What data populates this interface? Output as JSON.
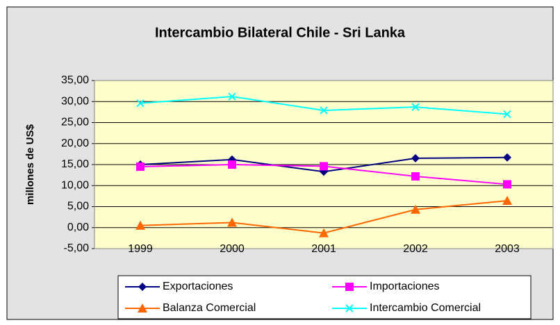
{
  "chart_data": {
    "type": "line",
    "title": "Intercambio Bilateral Chile - Sri  Lanka",
    "y_label": "millones de US$",
    "categories": [
      "1999",
      "2000",
      "2001",
      "2002",
      "2003"
    ],
    "series": [
      {
        "name": "Exportaciones",
        "color": "#000080",
        "marker": "diamond",
        "values": [
          15.0,
          16.2,
          13.3,
          16.5,
          16.7
        ]
      },
      {
        "name": "Importaciones",
        "color": "#ff00ff",
        "marker": "square",
        "values": [
          14.5,
          15.0,
          14.6,
          12.2,
          10.3
        ]
      },
      {
        "name": "Balanza Comercial",
        "color": "#ff6600",
        "marker": "triangle",
        "values": [
          0.5,
          1.2,
          -1.3,
          4.3,
          6.4
        ]
      },
      {
        "name": "Intercambio Comercial",
        "color": "#00ffff",
        "marker": "x",
        "values": [
          29.6,
          31.2,
          27.9,
          28.7,
          27.0
        ]
      }
    ],
    "ylim": [
      -5,
      35
    ],
    "yticks": [
      {
        "value": -5,
        "label": "-5,00"
      },
      {
        "value": 0,
        "label": "0,00"
      },
      {
        "value": 5,
        "label": "5,00"
      },
      {
        "value": 10,
        "label": "10,00"
      },
      {
        "value": 15,
        "label": "15,00"
      },
      {
        "value": 20,
        "label": "20,00"
      },
      {
        "value": 25,
        "label": "25,00"
      },
      {
        "value": 30,
        "label": "30,00"
      },
      {
        "value": 35,
        "label": "35,00"
      }
    ],
    "grid": true,
    "legend": "bottom"
  }
}
